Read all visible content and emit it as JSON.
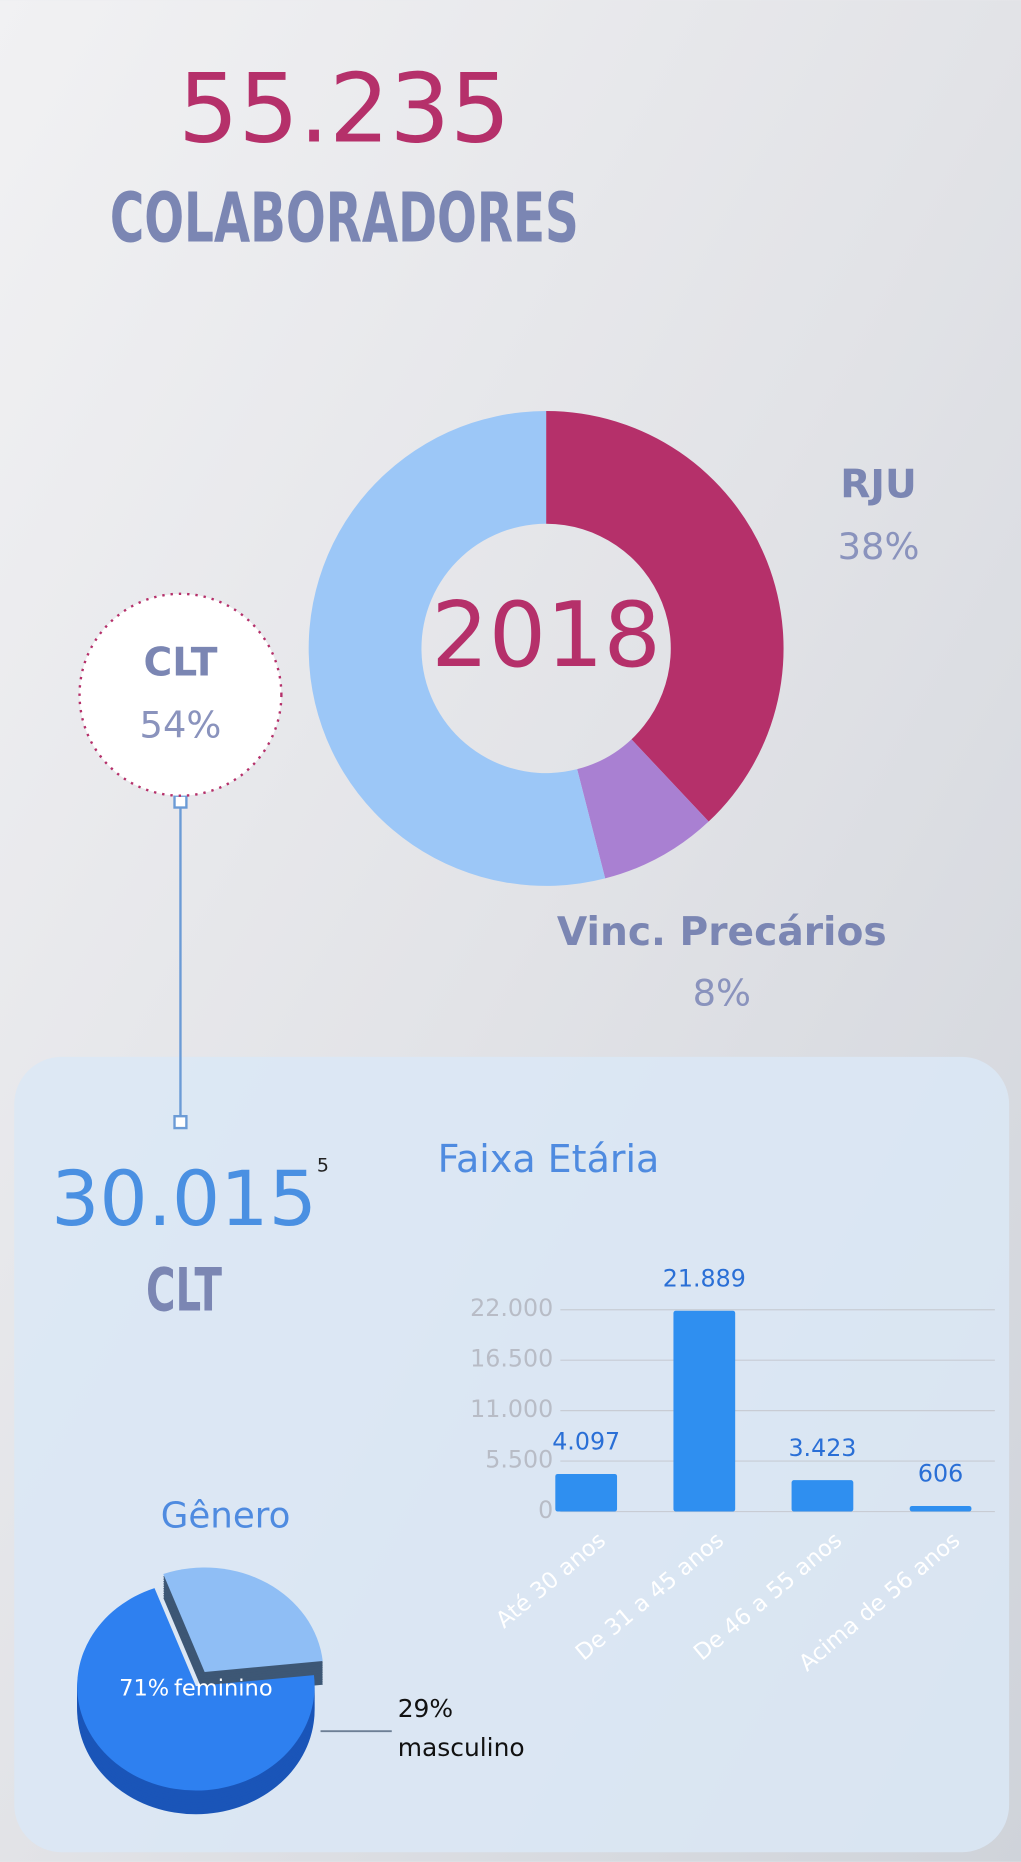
{
  "header": {
    "total": "55.235",
    "label": "COLABORADORES"
  },
  "clt": {
    "count": "30.015",
    "footnote": "5",
    "label": "CLT"
  },
  "chart_data": [
    {
      "type": "donut",
      "center_label": "2018",
      "categories": [
        "RJU",
        "Vinc. Precários",
        "CLT"
      ],
      "values": [
        38,
        8,
        54
      ],
      "value_labels": [
        "38%",
        "8%",
        "54%"
      ],
      "colors": [
        "#b5306a",
        "#a980d2",
        "#9cc7f7"
      ]
    },
    {
      "type": "bar",
      "title": "Faixa Etária",
      "categories": [
        "Até 30 anos",
        "De 31 a 45 anos",
        "De 46 a 55 anos",
        "Acima de 56 anos"
      ],
      "values": [
        4097,
        21889,
        3423,
        606
      ],
      "value_labels": [
        "4.097",
        "21.889",
        "3.423",
        "606"
      ],
      "color": "#2f8ff0",
      "ylim": [
        0,
        22000
      ],
      "yticks": [
        0,
        {
          "value": 5500,
          "label": "5.500"
        },
        {
          "value": 11000,
          "label": "11.000"
        },
        {
          "value": 16500,
          "label": "16.500"
        },
        {
          "value": 22000,
          "label": "22.000"
        }
      ],
      "grid": true
    },
    {
      "type": "pie3d",
      "title": "Gênero",
      "categories": [
        "feminino",
        "masculino"
      ],
      "values": [
        71,
        29
      ],
      "value_labels": [
        "71%",
        "29%"
      ],
      "colors": [
        "#2e80f0",
        "#8fbef5"
      ]
    }
  ]
}
